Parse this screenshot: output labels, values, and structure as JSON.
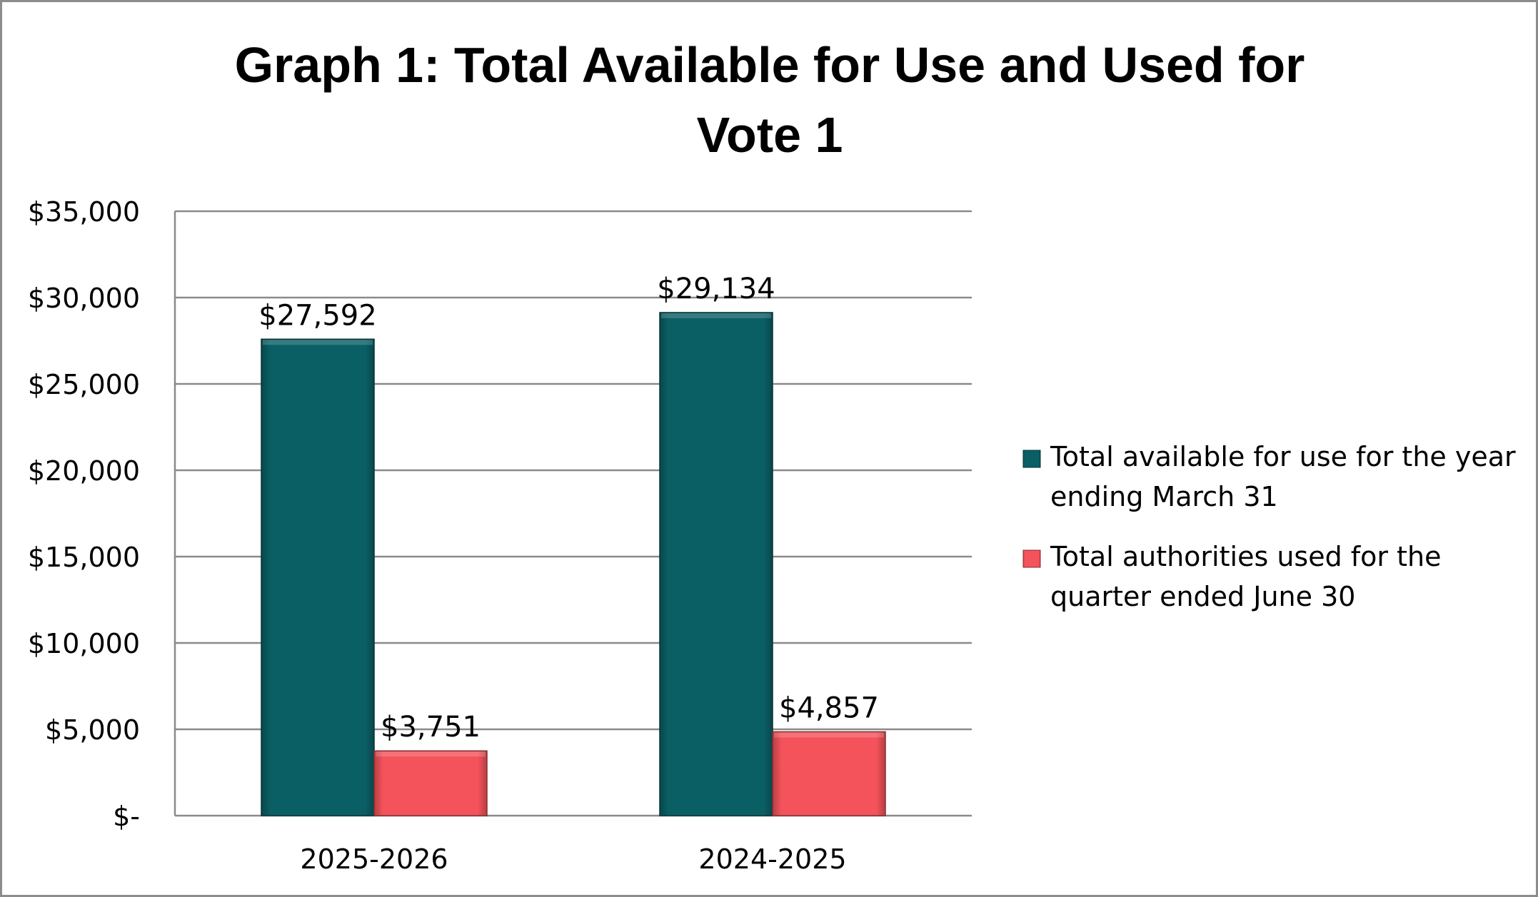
{
  "chart_data": {
    "type": "bar",
    "title_lines": [
      "Graph 1: Total Available for Use and Used for",
      "Vote 1"
    ],
    "categories": [
      "2025-2026",
      "2024-2025"
    ],
    "series": [
      {
        "name_lines": [
          "Total available for use for the year",
          "ending March 31"
        ],
        "values": [
          27592,
          29134
        ],
        "value_labels": [
          "$27,592",
          "$29,134"
        ],
        "color": "#0a5f65"
      },
      {
        "name_lines": [
          "Total authorities used for the",
          "quarter ended June 30"
        ],
        "values": [
          3751,
          4857
        ],
        "value_labels": [
          "$3,751",
          "$4,857"
        ],
        "color": "#f4535b"
      }
    ],
    "ylim": [
      0,
      35000
    ],
    "y_ticks": [
      0,
      5000,
      10000,
      15000,
      20000,
      25000,
      30000,
      35000
    ],
    "y_tick_labels": [
      "$-",
      "$5,000",
      "$10,000",
      "$15,000",
      "$20,000",
      "$25,000",
      "$30,000",
      "$35,000"
    ],
    "grid": true,
    "legend": "right"
  }
}
